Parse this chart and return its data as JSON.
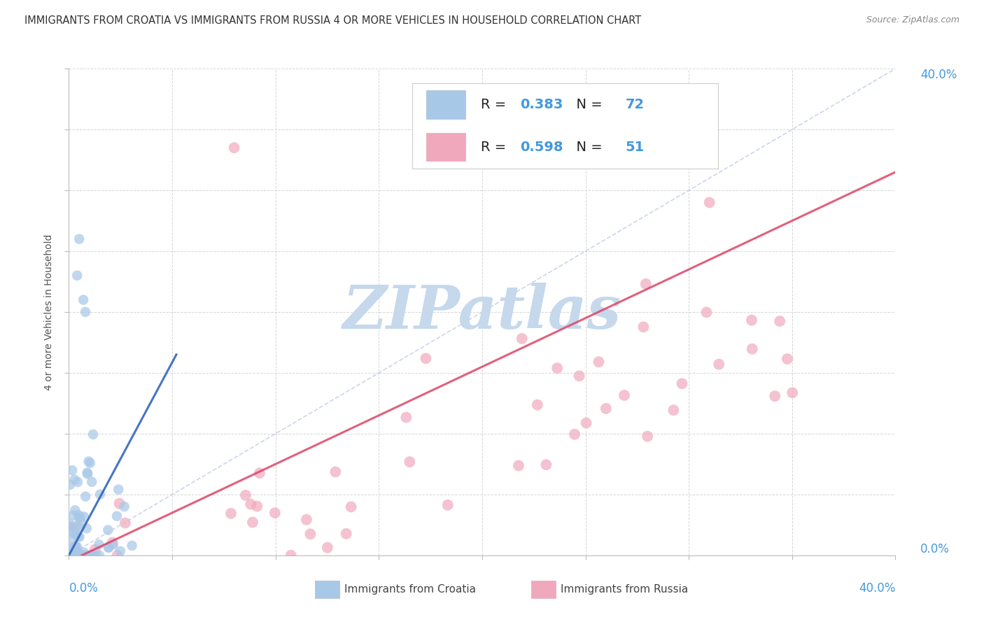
{
  "title": "IMMIGRANTS FROM CROATIA VS IMMIGRANTS FROM RUSSIA 4 OR MORE VEHICLES IN HOUSEHOLD CORRELATION CHART",
  "source": "Source: ZipAtlas.com",
  "legend_label1": "Immigrants from Croatia",
  "legend_label2": "Immigrants from Russia",
  "R1": "0.383",
  "N1": "72",
  "R2": "0.598",
  "N2": "51",
  "croatia_scatter_color": "#a8c8e8",
  "russia_scatter_color": "#f0a8bc",
  "croatia_line_color": "#3366bb",
  "russia_line_color": "#dd4466",
  "diagonal_color": "#aabbdd",
  "background_color": "#ffffff",
  "grid_color": "#cccccc",
  "watermark": "ZIPatlas",
  "watermark_color": "#c5d8ec",
  "title_color": "#333333",
  "axis_label_color": "#4499dd",
  "ylabel_label": "4 or more Vehicles in Household",
  "xlim": [
    0.0,
    0.4
  ],
  "ylim": [
    0.0,
    0.4
  ],
  "legend_R_N_color": "#4499dd",
  "legend_text_color": "#222222"
}
